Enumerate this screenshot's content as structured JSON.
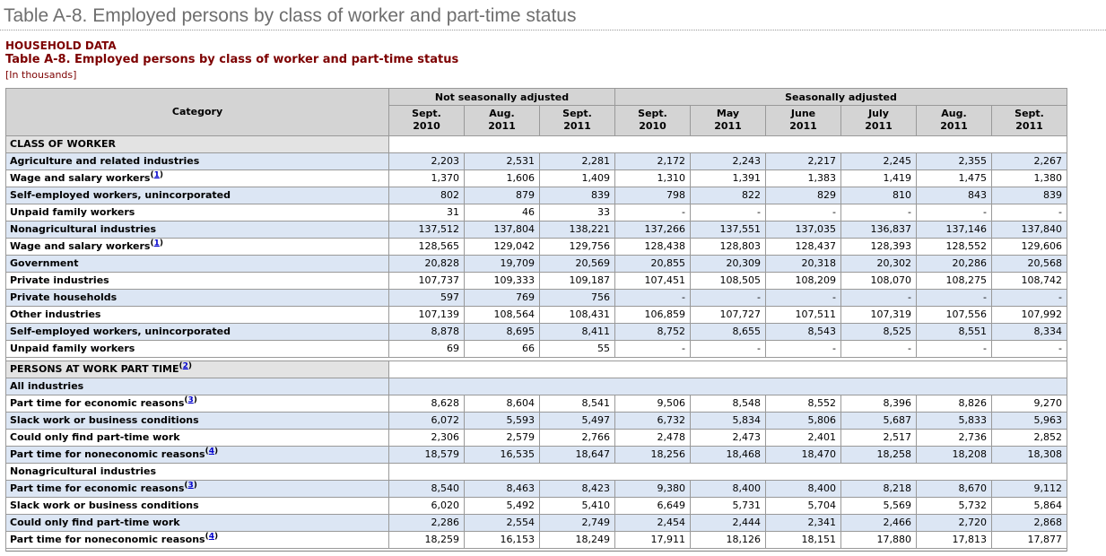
{
  "colors": {
    "header_bg": "#d4d4d4",
    "section_bg": "#e3e3e3",
    "row_blue": "#dce6f4",
    "maroon_heading": "#7d0000",
    "title_gray": "#6e6e6e",
    "footnote_link_blue": "#0000cc",
    "border_gray": "#999999"
  },
  "page": {
    "title": "Table A-8. Employed persons by class of worker and part-time status",
    "category_label": "HOUSEHOLD DATA",
    "table_title": "Table A-8. Employed persons by class of worker and part-time status",
    "units": "[In thousands]"
  },
  "table": {
    "category_header": "Category",
    "column_groups": [
      {
        "label": "Not seasonally adjusted",
        "span": 3
      },
      {
        "label": "Seasonally adjusted",
        "span": 6
      }
    ],
    "columns": [
      {
        "month": "Sept.",
        "year": "2010"
      },
      {
        "month": "Aug.",
        "year": "2011"
      },
      {
        "month": "Sept.",
        "year": "2011"
      },
      {
        "month": "Sept.",
        "year": "2010"
      },
      {
        "month": "May",
        "year": "2011"
      },
      {
        "month": "June",
        "year": "2011"
      },
      {
        "month": "July",
        "year": "2011"
      },
      {
        "month": "Aug.",
        "year": "2011"
      },
      {
        "month": "Sept.",
        "year": "2011"
      }
    ],
    "rows": [
      {
        "type": "section",
        "label": "CLASS OF WORKER",
        "footnote": null
      },
      {
        "type": "data",
        "indent": 0,
        "shade": "blue",
        "label": "Agriculture and related industries",
        "footnote": null,
        "values": [
          "2,203",
          "2,531",
          "2,281",
          "2,172",
          "2,243",
          "2,217",
          "2,245",
          "2,355",
          "2,267"
        ]
      },
      {
        "type": "data",
        "indent": 1,
        "shade": "white",
        "label": "Wage and salary workers",
        "footnote": "1",
        "values": [
          "1,370",
          "1,606",
          "1,409",
          "1,310",
          "1,391",
          "1,383",
          "1,419",
          "1,475",
          "1,380"
        ]
      },
      {
        "type": "data",
        "indent": 1,
        "shade": "blue",
        "label": "Self-employed workers, unincorporated",
        "footnote": null,
        "values": [
          "802",
          "879",
          "839",
          "798",
          "822",
          "829",
          "810",
          "843",
          "839"
        ]
      },
      {
        "type": "data",
        "indent": 1,
        "shade": "white",
        "label": "Unpaid family workers",
        "footnote": null,
        "values": [
          "31",
          "46",
          "33",
          "-",
          "-",
          "-",
          "-",
          "-",
          "-"
        ]
      },
      {
        "type": "data",
        "indent": 0,
        "shade": "blue",
        "label": "Nonagricultural industries",
        "footnote": null,
        "values": [
          "137,512",
          "137,804",
          "138,221",
          "137,266",
          "137,551",
          "137,035",
          "136,837",
          "137,146",
          "137,840"
        ]
      },
      {
        "type": "data",
        "indent": 1,
        "shade": "white",
        "label": "Wage and salary workers",
        "footnote": "1",
        "values": [
          "128,565",
          "129,042",
          "129,756",
          "128,438",
          "128,803",
          "128,437",
          "128,393",
          "128,552",
          "129,606"
        ]
      },
      {
        "type": "data",
        "indent": 2,
        "shade": "blue",
        "label": "Government",
        "footnote": null,
        "values": [
          "20,828",
          "19,709",
          "20,569",
          "20,855",
          "20,309",
          "20,318",
          "20,302",
          "20,286",
          "20,568"
        ]
      },
      {
        "type": "data",
        "indent": 2,
        "shade": "white",
        "label": "Private industries",
        "footnote": null,
        "values": [
          "107,737",
          "109,333",
          "109,187",
          "107,451",
          "108,505",
          "108,209",
          "108,070",
          "108,275",
          "108,742"
        ]
      },
      {
        "type": "data",
        "indent": 3,
        "shade": "blue",
        "label": "Private households",
        "footnote": null,
        "values": [
          "597",
          "769",
          "756",
          "-",
          "-",
          "-",
          "-",
          "-",
          "-"
        ]
      },
      {
        "type": "data",
        "indent": 3,
        "shade": "white",
        "label": "Other industries",
        "footnote": null,
        "values": [
          "107,139",
          "108,564",
          "108,431",
          "106,859",
          "107,727",
          "107,511",
          "107,319",
          "107,556",
          "107,992"
        ]
      },
      {
        "type": "data",
        "indent": 1,
        "shade": "blue",
        "label": "Self-employed workers, unincorporated",
        "footnote": null,
        "values": [
          "8,878",
          "8,695",
          "8,411",
          "8,752",
          "8,655",
          "8,543",
          "8,525",
          "8,551",
          "8,334"
        ]
      },
      {
        "type": "data",
        "indent": 1,
        "shade": "white",
        "label": "Unpaid family workers",
        "footnote": null,
        "values": [
          "69",
          "66",
          "55",
          "-",
          "-",
          "-",
          "-",
          "-",
          "-"
        ]
      },
      {
        "type": "spacer"
      },
      {
        "type": "section",
        "label": "PERSONS AT WORK PART TIME",
        "footnote": "2"
      },
      {
        "type": "label",
        "shade": "blue",
        "label": "All industries",
        "footnote": null
      },
      {
        "type": "data",
        "indent": 0,
        "shade": "white",
        "label": "Part time for economic reasons",
        "footnote": "3",
        "values": [
          "8,628",
          "8,604",
          "8,541",
          "9,506",
          "8,548",
          "8,552",
          "8,396",
          "8,826",
          "9,270"
        ]
      },
      {
        "type": "data",
        "indent": 1,
        "shade": "blue",
        "label": "Slack work or business conditions",
        "footnote": null,
        "values": [
          "6,072",
          "5,593",
          "5,497",
          "6,732",
          "5,834",
          "5,806",
          "5,687",
          "5,833",
          "5,963"
        ]
      },
      {
        "type": "data",
        "indent": 1,
        "shade": "white",
        "label": "Could only find part-time work",
        "footnote": null,
        "values": [
          "2,306",
          "2,579",
          "2,766",
          "2,478",
          "2,473",
          "2,401",
          "2,517",
          "2,736",
          "2,852"
        ]
      },
      {
        "type": "data",
        "indent": 0,
        "shade": "blue",
        "label": "Part time for noneconomic reasons",
        "footnote": "4",
        "values": [
          "18,579",
          "16,535",
          "18,647",
          "18,256",
          "18,468",
          "18,470",
          "18,258",
          "18,208",
          "18,308"
        ]
      },
      {
        "type": "label",
        "shade": "white",
        "label": "Nonagricultural industries",
        "footnote": null
      },
      {
        "type": "data",
        "indent": 0,
        "shade": "blue",
        "label": "Part time for economic reasons",
        "footnote": "3",
        "values": [
          "8,540",
          "8,463",
          "8,423",
          "9,380",
          "8,400",
          "8,400",
          "8,218",
          "8,670",
          "9,112"
        ]
      },
      {
        "type": "data",
        "indent": 1,
        "shade": "white",
        "label": "Slack work or business conditions",
        "footnote": null,
        "values": [
          "6,020",
          "5,492",
          "5,410",
          "6,649",
          "5,731",
          "5,704",
          "5,569",
          "5,732",
          "5,864"
        ]
      },
      {
        "type": "data",
        "indent": 1,
        "shade": "blue",
        "label": "Could only find part-time work",
        "footnote": null,
        "values": [
          "2,286",
          "2,554",
          "2,749",
          "2,454",
          "2,444",
          "2,341",
          "2,466",
          "2,720",
          "2,868"
        ]
      },
      {
        "type": "data",
        "indent": 0,
        "shade": "white",
        "label": "Part time for noneconomic reasons",
        "footnote": "4",
        "values": [
          "18,259",
          "16,153",
          "18,249",
          "17,911",
          "18,126",
          "18,151",
          "17,880",
          "17,813",
          "17,877"
        ]
      },
      {
        "type": "bottom-sliver"
      }
    ]
  }
}
